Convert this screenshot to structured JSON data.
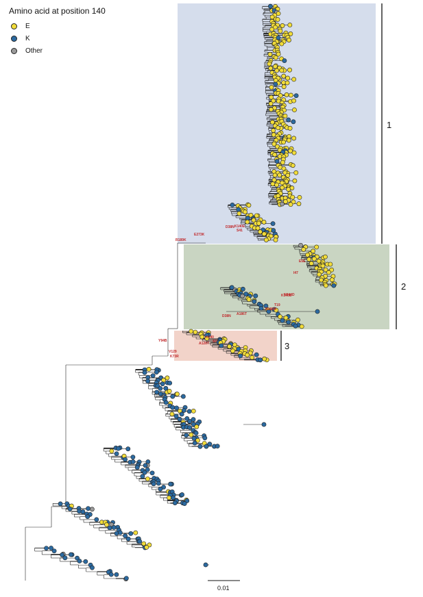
{
  "legend": {
    "title": "Amino acid at position 140",
    "items": [
      {
        "label": "E",
        "color": "#f1dc3a"
      },
      {
        "label": "K",
        "color": "#2c6aa0"
      },
      {
        "label": "Other",
        "color": "#9a9a9a"
      }
    ]
  },
  "clades": [
    {
      "label": "1",
      "color": "#c8d4e8"
    },
    {
      "label": "2",
      "color": "#bfcdb5"
    },
    {
      "label": "3",
      "color": "#f0c6b8"
    }
  ],
  "mutations": [
    "R189K",
    "E273K",
    "D38N",
    "K140E",
    "S41",
    "E5E",
    "I47",
    "K140E",
    "N244D",
    "T19",
    "R186M",
    "A186T",
    "D38N",
    "K140",
    "A128T",
    "SP",
    "Y94B",
    "V129",
    "K73R"
  ],
  "scale_bar": {
    "label": "0.01"
  },
  "colors": {
    "E": "#f1dc3a",
    "K": "#2c6aa0",
    "Other": "#9a9a9a",
    "branch": "#222222",
    "mutation_text": "#c0282a"
  }
}
